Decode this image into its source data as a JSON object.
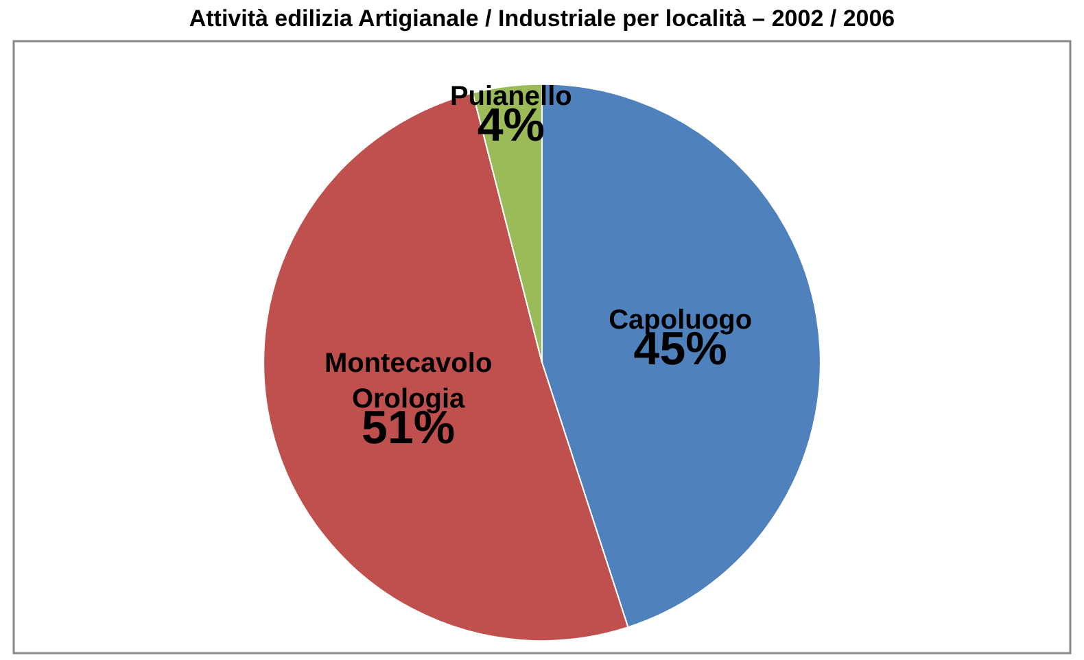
{
  "chart_data": {
    "type": "pie",
    "title": "Attività edilizia Artigianale / Industriale per località – 2002 / 2006",
    "categories": [
      "Capoluogo",
      "Montecavolo Orologia",
      "Puianello"
    ],
    "values": [
      45,
      51,
      4
    ],
    "colors": [
      "#4f81bd",
      "#c0504d",
      "#9bbb59"
    ],
    "value_labels": [
      "45%",
      "51%",
      "4%"
    ],
    "legend": false
  }
}
